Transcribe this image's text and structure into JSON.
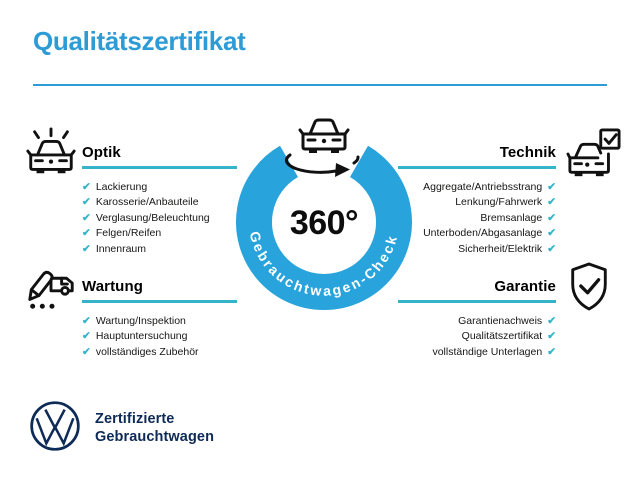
{
  "header": {
    "title": "Qualitätszertifikat"
  },
  "center": {
    "degree_label": "360°",
    "ring_label": "Gebrauchtwagen-Check"
  },
  "check_glyph": "✔",
  "colors": {
    "title_blue": "#2d9bd5",
    "ring_blue": "#29a3dc",
    "accent_teal": "#35b4c9",
    "vw_navy": "#0e2a57"
  },
  "sections": [
    {
      "id": "optik",
      "title": "Optik",
      "icon": "car-front-shine-icon",
      "items": [
        "Lackierung",
        "Karosserie/Anbauteile",
        "Verglasung/Beleuchtung",
        "Felgen/Reifen",
        "Innenraum"
      ]
    },
    {
      "id": "technik",
      "title": "Technik",
      "icon": "car-checkbox-icon",
      "items": [
        "Aggregate/Antriebsstrang",
        "Lenkung/Fahrwerk",
        "Bremsanlage",
        "Unterboden/Abgasanlage",
        "Sicherheit/Elektrik"
      ]
    },
    {
      "id": "wartung",
      "title": "Wartung",
      "icon": "pencil-car-icon",
      "items": [
        "Wartung/Inspektion",
        "Hauptuntersuchung",
        "vollständiges Zubehör"
      ]
    },
    {
      "id": "garantie",
      "title": "Garantie",
      "icon": "shield-check-icon",
      "items": [
        "Garantienachweis",
        "Qualitätszertifikat",
        "vollständige Unterlagen"
      ]
    }
  ],
  "footer": {
    "line1": "Zertifizierte",
    "line2": "Gebrauchtwagen"
  }
}
